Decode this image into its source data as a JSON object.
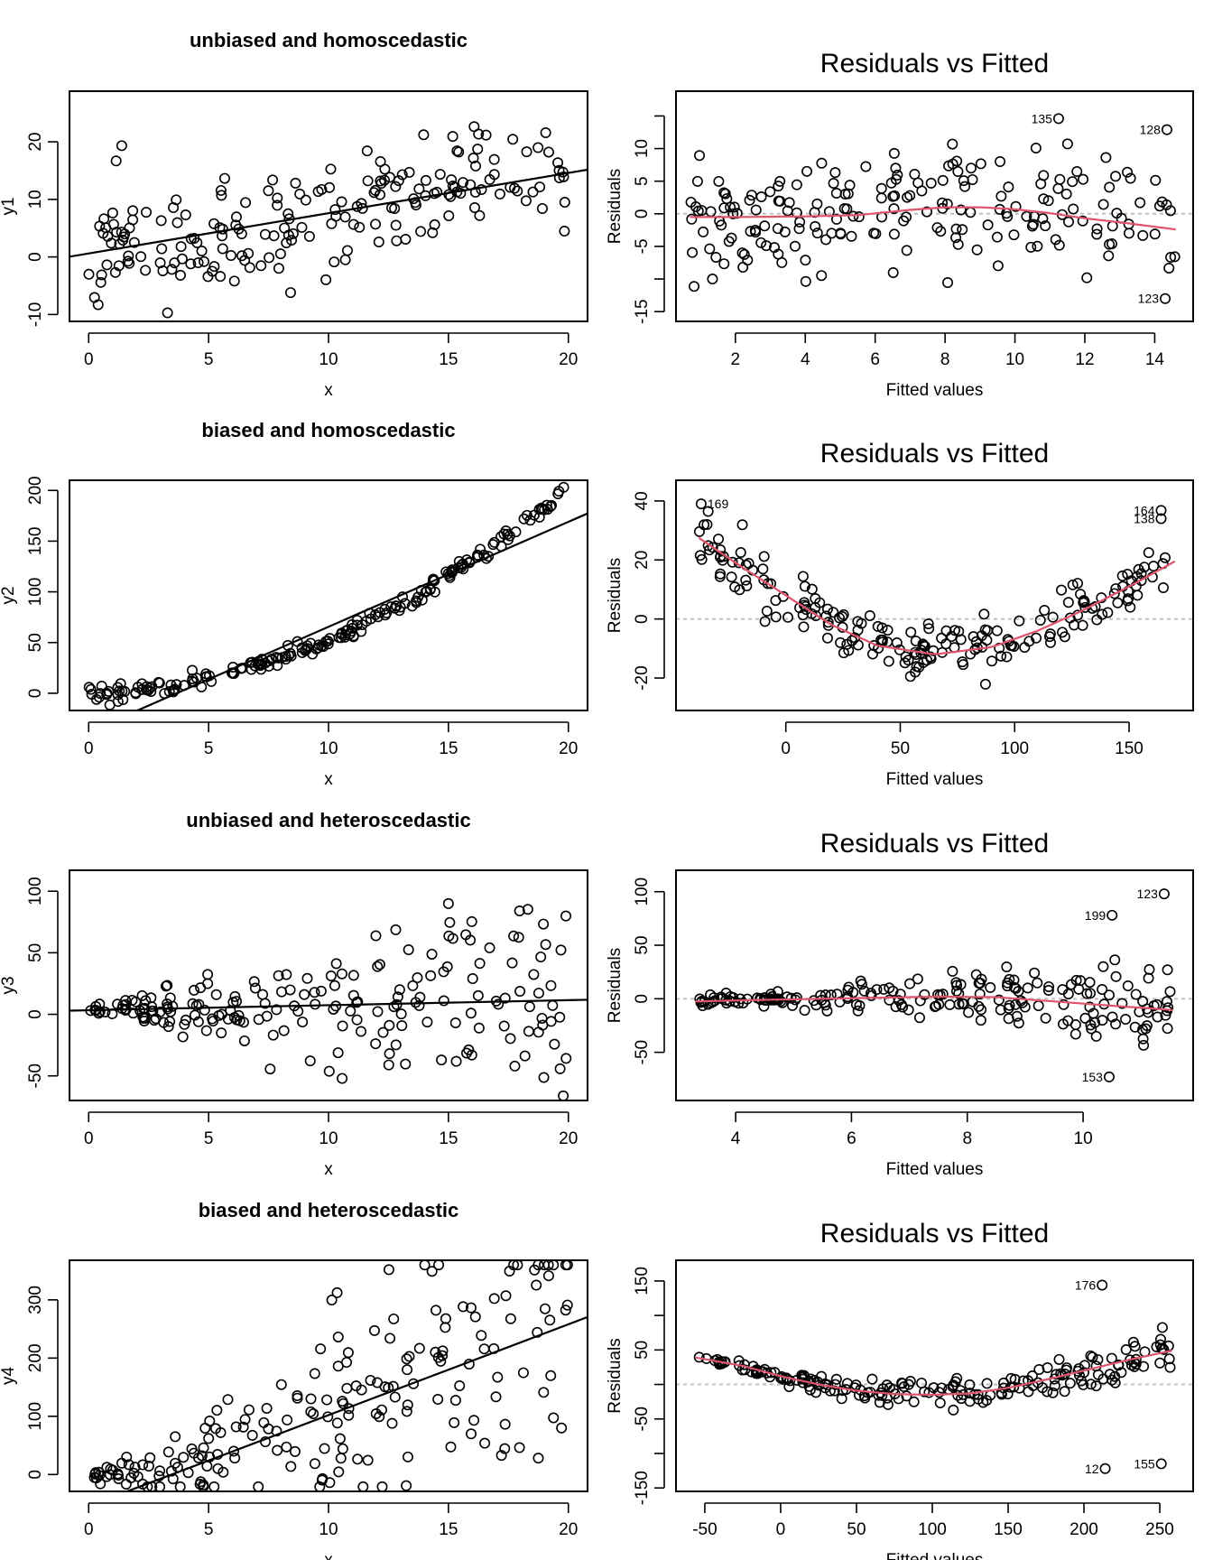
{
  "figure": {
    "description": "2x4 panel figure: scatter plots with linear fits (left) and Residuals vs Fitted diagnostic plots (right)"
  },
  "chart_data": [
    {
      "id": "p1-scatter",
      "type": "scatter",
      "title": "unbiased and homoscedastic",
      "xlabel": "x",
      "ylabel": "y1",
      "xlim": [
        -0.8,
        20.8
      ],
      "ylim": [
        -11.2,
        28.8
      ],
      "xticks": [
        0,
        5,
        10,
        15,
        20
      ],
      "yticks": [
        -10,
        0,
        10,
        20
      ],
      "ytick_labels": [
        "-10",
        "0",
        "10",
        "20"
      ],
      "fit_line": {
        "intercept": 0.6,
        "slope": 0.7
      },
      "generator": {
        "n": 200,
        "seed": 11,
        "model": "linear",
        "a": 0.6,
        "b": 0.7,
        "c": 0,
        "sd": 5,
        "hetero": false
      },
      "grid": false,
      "legend": "none"
    },
    {
      "id": "p1-resid",
      "type": "scatter",
      "title": "Residuals vs Fitted",
      "xlabel": "Fitted values",
      "ylabel": "Residuals",
      "xlim": [
        0.3,
        15.1
      ],
      "ylim": [
        -16.5,
        18.8
      ],
      "xticks": [
        2,
        4,
        6,
        8,
        10,
        12,
        14
      ],
      "yticks": [
        -15,
        -10,
        -5,
        0,
        5,
        10,
        15
      ],
      "ytick_labels": [
        "-15",
        "",
        "-5",
        "0",
        "5",
        "10",
        ""
      ],
      "smooth": [
        [
          0.7,
          -0.5
        ],
        [
          2,
          -0.5
        ],
        [
          4,
          -0.4
        ],
        [
          5.5,
          -0.2
        ],
        [
          7,
          0.6
        ],
        [
          8,
          1.0
        ],
        [
          9,
          1.0
        ],
        [
          10,
          0.7
        ],
        [
          11,
          0.1
        ],
        [
          12,
          -0.7
        ],
        [
          13,
          -1.3
        ],
        [
          14.6,
          -2.4
        ]
      ],
      "labeled_points": [
        {
          "label": "135",
          "x": 11.25,
          "y": 14.6
        },
        {
          "label": "128",
          "x": 14.35,
          "y": 12.9
        },
        {
          "label": "123",
          "x": 14.3,
          "y": -13.0
        }
      ],
      "generator": {
        "n": 200,
        "seed": 12,
        "model": "resid",
        "xmin": 0.7,
        "xmax": 14.6,
        "sd": 5,
        "hetero": false,
        "curve": "smooth"
      },
      "grid": false,
      "legend": "none"
    },
    {
      "id": "p2-scatter",
      "type": "scatter",
      "title": "biased and homoscedastic",
      "xlabel": "x",
      "ylabel": "y2",
      "xlim": [
        -0.8,
        20.8
      ],
      "ylim": [
        -17,
        210
      ],
      "xticks": [
        0,
        5,
        10,
        15,
        20
      ],
      "yticks": [
        0,
        50,
        100,
        150,
        200
      ],
      "ytick_labels": [
        "0",
        "50",
        "100",
        "150",
        "200"
      ],
      "fit_line": {
        "intercept": -38,
        "slope": 10.35
      },
      "generator": {
        "n": 200,
        "seed": 21,
        "model": "quad",
        "a": 0,
        "b": 0.5,
        "c": 0.48,
        "sd": 4,
        "hetero": false
      },
      "grid": false,
      "legend": "none"
    },
    {
      "id": "p2-resid",
      "type": "scatter",
      "title": "Residuals vs Fitted",
      "xlabel": "Fitted values",
      "ylabel": "Residuals",
      "xlim": [
        -48,
        178
      ],
      "ylim": [
        -31,
        47
      ],
      "xticks": [
        0,
        50,
        100,
        150
      ],
      "yticks": [
        -20,
        0,
        20,
        40
      ],
      "ytick_labels": [
        "-20",
        "0",
        "20",
        "40"
      ],
      "smooth": [
        [
          -38,
          27.5
        ],
        [
          -20,
          18
        ],
        [
          0,
          8
        ],
        [
          20,
          -2
        ],
        [
          40,
          -9
        ],
        [
          65,
          -12
        ],
        [
          90,
          -9.5
        ],
        [
          110,
          -4
        ],
        [
          130,
          3
        ],
        [
          150,
          11
        ],
        [
          170,
          19.5
        ]
      ],
      "labeled_points": [
        {
          "label": "169",
          "x": -37,
          "y": 39
        },
        {
          "label": "164",
          "x": 164,
          "y": 36.8
        },
        {
          "label": "138",
          "x": 164,
          "y": 34
        }
      ],
      "generator": {
        "n": 200,
        "seed": 22,
        "model": "resid",
        "xmin": -38,
        "xmax": 170,
        "sd": 4.5,
        "hetero": false,
        "curve": "smooth"
      },
      "grid": false,
      "legend": "none"
    },
    {
      "id": "p3-scatter",
      "type": "scatter",
      "title": "unbiased and heteroscedastic",
      "xlabel": "x",
      "ylabel": "y3",
      "xlim": [
        -0.8,
        20.8
      ],
      "ylim": [
        -70,
        117
      ],
      "xticks": [
        0,
        5,
        10,
        15,
        20
      ],
      "yticks": [
        -50,
        0,
        50,
        100
      ],
      "ytick_labels": [
        "-50",
        "0",
        "50",
        "100"
      ],
      "fit_line": {
        "intercept": 3.3,
        "slope": 0.41
      },
      "generator": {
        "n": 200,
        "seed": 31,
        "model": "linear",
        "a": 3.3,
        "b": 0.41,
        "c": 0,
        "sd": 1.6,
        "hetero": true
      },
      "grid": false,
      "legend": "none"
    },
    {
      "id": "p3-resid",
      "type": "scatter",
      "title": "Residuals vs Fitted",
      "xlabel": "Fitted values",
      "ylabel": "Residuals",
      "xlim": [
        2.97,
        11.9
      ],
      "ylim": [
        -95,
        120
      ],
      "xticks": [
        4,
        6,
        8,
        10
      ],
      "yticks": [
        -50,
        0,
        50,
        100
      ],
      "ytick_labels": [
        "-50",
        "0",
        "50",
        "100"
      ],
      "smooth": [
        [
          3.3,
          -2.5
        ],
        [
          4.5,
          -1
        ],
        [
          5.5,
          0
        ],
        [
          6.5,
          1
        ],
        [
          7.5,
          2
        ],
        [
          8.5,
          1.5
        ],
        [
          9.5,
          -2.5
        ],
        [
          10.5,
          -6.5
        ],
        [
          11.55,
          -10.5
        ]
      ],
      "labeled_points": [
        {
          "label": "123",
          "x": 11.4,
          "y": 98
        },
        {
          "label": "199",
          "x": 10.5,
          "y": 78
        },
        {
          "label": "153",
          "x": 10.45,
          "y": -73
        }
      ],
      "generator": {
        "n": 200,
        "seed": 32,
        "model": "resid",
        "xmin": 3.3,
        "xmax": 11.55,
        "sd": 3.8,
        "hetero": true,
        "curve": "smooth"
      },
      "grid": false,
      "legend": "none"
    },
    {
      "id": "p4-scatter",
      "type": "scatter",
      "title": "biased and heteroscedastic",
      "xlabel": "x",
      "ylabel": "y4",
      "xlim": [
        -0.8,
        20.8
      ],
      "ylim": [
        -29,
        368
      ],
      "xticks": [
        0,
        5,
        10,
        15,
        20
      ],
      "yticks": [
        0,
        100,
        200,
        300
      ],
      "ytick_labels": [
        "0",
        "100",
        "200",
        "300"
      ],
      "fit_line": {
        "intercept": -54,
        "slope": 15.6
      },
      "generator": {
        "n": 200,
        "seed": 41,
        "model": "quad",
        "a": 0,
        "b": 2,
        "c": 0.7,
        "sd": 3.5,
        "hetero": true
      },
      "grid": false,
      "legend": "none"
    },
    {
      "id": "p4-resid",
      "type": "scatter",
      "title": "Residuals vs Fitted",
      "xlabel": "Fitted values",
      "ylabel": "Residuals",
      "xlim": [
        -69,
        272
      ],
      "ylim": [
        -155,
        180
      ],
      "xticks": [
        -50,
        0,
        50,
        100,
        150,
        200,
        250
      ],
      "yticks": [
        -150,
        -100,
        -50,
        0,
        50,
        100,
        150
      ],
      "ytick_labels": [
        "-150",
        "",
        "-50",
        "",
        "50",
        "",
        "150"
      ],
      "smooth": [
        [
          -56,
          39
        ],
        [
          -25,
          27
        ],
        [
          0,
          12
        ],
        [
          25,
          0
        ],
        [
          50,
          -9
        ],
        [
          75,
          -14
        ],
        [
          100,
          -15
        ],
        [
          125,
          -13
        ],
        [
          150,
          -5
        ],
        [
          175,
          7
        ],
        [
          200,
          20
        ],
        [
          230,
          36
        ],
        [
          258,
          49
        ]
      ],
      "labeled_points": [
        {
          "label": "176",
          "x": 212,
          "y": 144
        },
        {
          "label": "12",
          "x": 214,
          "y": -122
        },
        {
          "label": "155",
          "x": 251,
          "y": -115
        }
      ],
      "generator": {
        "n": 200,
        "seed": 42,
        "model": "resid",
        "xmin": -56,
        "xmax": 258,
        "sd": 3.6,
        "hetero": true,
        "curve": "smooth"
      },
      "grid": false,
      "legend": "none"
    }
  ],
  "colors": {
    "points": "#000000",
    "fit_line": "#000000",
    "smooth_line": "#DF536B",
    "zero_line": "#BEBEBE",
    "frame": "#000000"
  }
}
